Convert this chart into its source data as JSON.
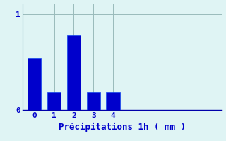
{
  "categories": [
    0,
    1,
    2,
    3,
    4
  ],
  "values": [
    0.54,
    0.18,
    0.78,
    0.18,
    0.18
  ],
  "bar_color": "#0000cc",
  "bar_edge_color": "#1144ee",
  "background_color": "#dff4f4",
  "xlabel": "Précipitations 1h ( mm )",
  "xlabel_color": "#0000cc",
  "xlim": [
    -0.5,
    9.5
  ],
  "ylim": [
    0,
    1.1
  ],
  "yticks": [
    0,
    1
  ],
  "xticks": [
    0,
    1,
    2,
    3,
    4
  ],
  "grid_color": "#99bbbb",
  "axis_color": "#5588aa",
  "tick_color": "#0000cc",
  "bar_width": 0.7,
  "xlabel_fontsize": 9,
  "tick_fontsize": 8
}
